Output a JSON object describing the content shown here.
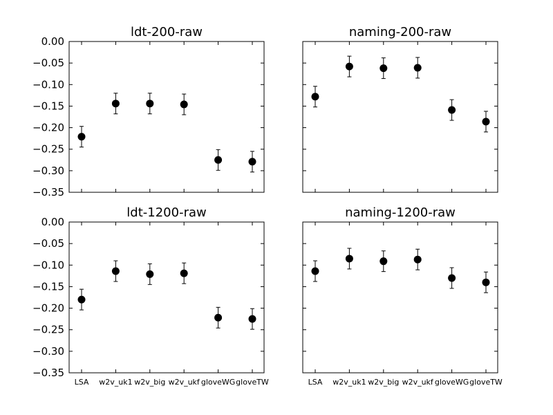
{
  "chart_data": [
    {
      "type": "scatter",
      "title": "ldt-200-raw",
      "categories": [
        "LSA",
        "w2v_uk1",
        "w2v_big",
        "w2v_ukf",
        "gloveWG",
        "gloveTW"
      ],
      "values": [
        -0.221,
        -0.144,
        -0.144,
        -0.146,
        -0.275,
        -0.279
      ],
      "errors": [
        0.024,
        0.024,
        0.024,
        0.024,
        0.024,
        0.024
      ],
      "ylim": [
        -0.35,
        0.0
      ],
      "yticks": [
        "0.00",
        "−0.05",
        "−0.10",
        "−0.15",
        "−0.20",
        "−0.25",
        "−0.30",
        "−0.35"
      ],
      "show_yticklabels": true,
      "show_xticklabels": false
    },
    {
      "type": "scatter",
      "title": "naming-200-raw",
      "categories": [
        "LSA",
        "w2v_uk1",
        "w2v_big",
        "w2v_ukf",
        "gloveWG",
        "gloveTW"
      ],
      "values": [
        -0.128,
        -0.058,
        -0.062,
        -0.061,
        -0.159,
        -0.186
      ],
      "errors": [
        0.024,
        0.024,
        0.024,
        0.024,
        0.024,
        0.024
      ],
      "ylim": [
        -0.35,
        0.0
      ],
      "yticks": [
        "0.00",
        "−0.05",
        "−0.10",
        "−0.15",
        "−0.20",
        "−0.25",
        "−0.30",
        "−0.35"
      ],
      "show_yticklabels": false,
      "show_xticklabels": false
    },
    {
      "type": "scatter",
      "title": "ldt-1200-raw",
      "categories": [
        "LSA",
        "w2v_uk1",
        "w2v_big",
        "w2v_ukf",
        "gloveWG",
        "gloveTW"
      ],
      "values": [
        -0.18,
        -0.114,
        -0.121,
        -0.119,
        -0.222,
        -0.225
      ],
      "errors": [
        0.024,
        0.024,
        0.024,
        0.024,
        0.024,
        0.024
      ],
      "ylim": [
        -0.35,
        0.0
      ],
      "yticks": [
        "0.00",
        "−0.05",
        "−0.10",
        "−0.15",
        "−0.20",
        "−0.25",
        "−0.30",
        "−0.35"
      ],
      "show_yticklabels": true,
      "show_xticklabels": true
    },
    {
      "type": "scatter",
      "title": "naming-1200-raw",
      "categories": [
        "LSA",
        "w2v_uk1",
        "w2v_big",
        "w2v_ukf",
        "gloveWG",
        "gloveTW"
      ],
      "values": [
        -0.114,
        -0.085,
        -0.091,
        -0.087,
        -0.13,
        -0.14
      ],
      "errors": [
        0.024,
        0.024,
        0.024,
        0.024,
        0.024,
        0.024
      ],
      "ylim": [
        -0.35,
        0.0
      ],
      "yticks": [
        "0.00",
        "−0.05",
        "−0.10",
        "−0.15",
        "−0.20",
        "−0.25",
        "−0.30",
        "−0.35"
      ],
      "show_yticklabels": false,
      "show_xticklabels": true
    }
  ],
  "colors": {
    "marker": "#000000",
    "axes": "#000000",
    "background": "#ffffff"
  }
}
